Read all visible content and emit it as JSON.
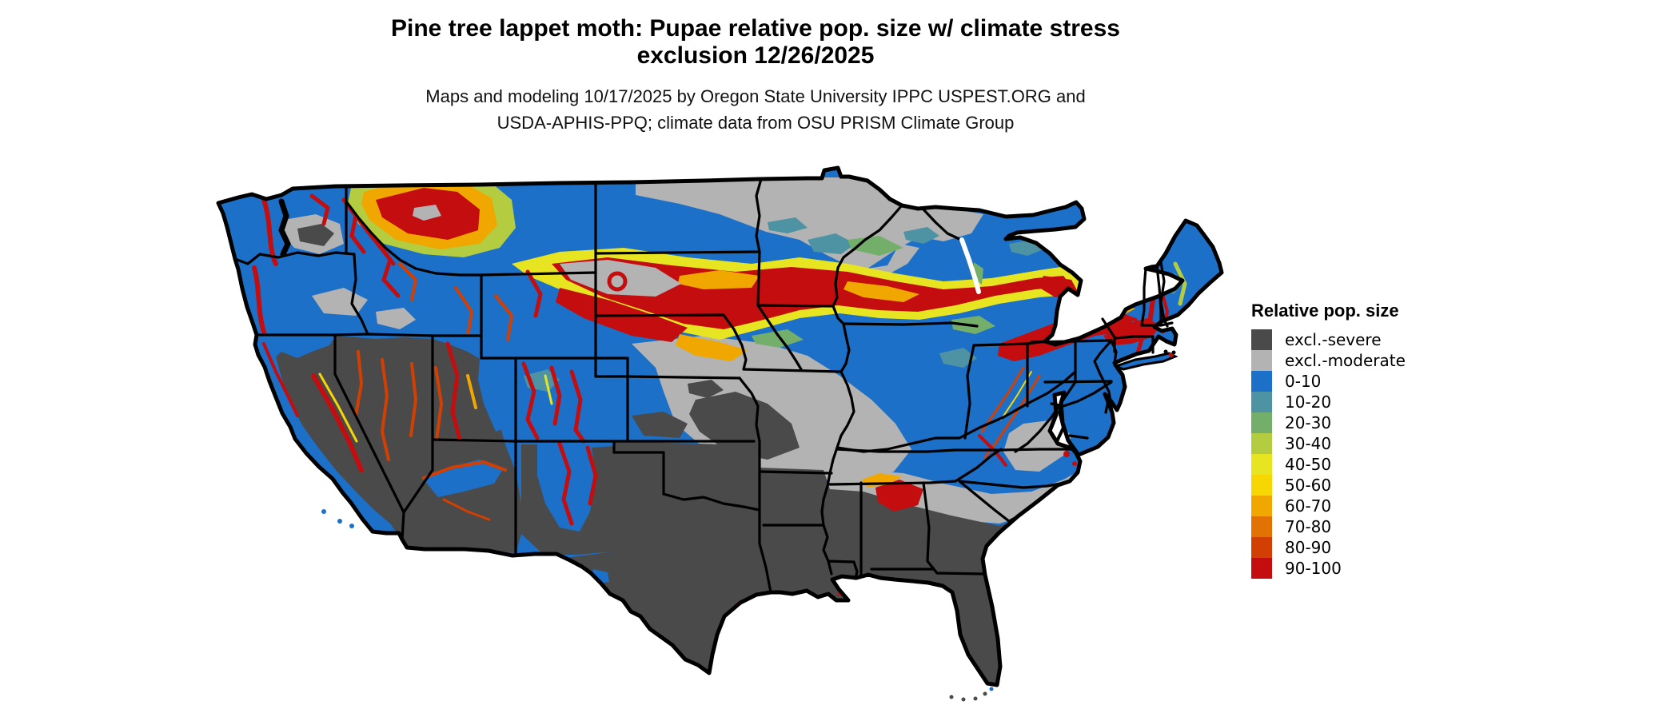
{
  "header": {
    "title_line1": "Pine tree lappet moth: Pupae relative pop. size w/ climate stress",
    "title_line2": "exclusion 12/26/2025",
    "subtitle_line1": "Maps and modeling 10/17/2025 by Oregon State University IPPC USPEST.ORG and",
    "subtitle_line2": "USDA-APHIS-PPQ; climate data from OSU PRISM Climate Group"
  },
  "legend": {
    "title": "Relative pop. size",
    "items": [
      {
        "label": "excl.-severe",
        "color": "#4A4A4A"
      },
      {
        "label": "excl.-moderate",
        "color": "#B3B3B3"
      },
      {
        "label": "0-10",
        "color": "#1C70C8"
      },
      {
        "label": "10-20",
        "color": "#4E93A3"
      },
      {
        "label": "20-30",
        "color": "#74AE6B"
      },
      {
        "label": "30-40",
        "color": "#B4CD40"
      },
      {
        "label": "40-50",
        "color": "#E7E522"
      },
      {
        "label": "50-60",
        "color": "#F7D703"
      },
      {
        "label": "60-70",
        "color": "#F0A800"
      },
      {
        "label": "70-80",
        "color": "#E37204"
      },
      {
        "label": "80-90",
        "color": "#D23F02"
      },
      {
        "label": "90-100",
        "color": "#C30D0E"
      }
    ]
  },
  "map": {
    "background": "#FFFFFF",
    "outline_color": "#000000",
    "palette": {
      "sev": "#4A4A4A",
      "mod": "#B3B3B3",
      "c0": "#1C70C8",
      "c10": "#4E93A3",
      "c20": "#74AE6B",
      "c30": "#B4CD40",
      "c40": "#E7E522",
      "c50": "#F7D703",
      "c60": "#F0A800",
      "c70": "#E37204",
      "c80": "#D23F02",
      "c90": "#C30D0E",
      "ink": "#000000",
      "water": "#FFFFFF"
    }
  }
}
